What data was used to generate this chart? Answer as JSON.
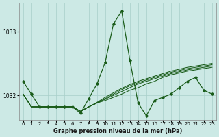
{
  "title": "Graphe pression niveau de la mer (hPa)",
  "bg_color": "#cce9e5",
  "grid_color": "#a8cfc9",
  "line_color": "#1a5c1a",
  "marker_color": "#1a5c1a",
  "xlim": [
    -0.5,
    23.5
  ],
  "ylim": [
    1031.62,
    1033.45
  ],
  "yticks": [
    1032,
    1033
  ],
  "xticks": [
    0,
    1,
    2,
    3,
    4,
    5,
    6,
    7,
    8,
    9,
    10,
    11,
    12,
    13,
    14,
    15,
    16,
    17,
    18,
    19,
    20,
    21,
    22,
    23
  ],
  "series_main": [
    1032.22,
    1032.02,
    1031.82,
    1031.82,
    1031.82,
    1031.82,
    1031.82,
    1031.72,
    1031.95,
    1032.18,
    1032.52,
    1033.12,
    1033.32,
    1032.55,
    1031.88,
    1031.68,
    1031.92,
    1031.97,
    1032.02,
    1032.12,
    1032.22,
    1032.28,
    1032.08,
    1032.02
  ],
  "series_trend": [
    [
      1032.02,
      1031.82,
      1031.82,
      1031.82,
      1031.82,
      1031.82,
      1031.82,
      1031.75,
      1031.82,
      1031.88,
      1031.92,
      1031.97,
      1032.02,
      1032.08,
      1032.12,
      1032.18,
      1032.22,
      1032.28,
      1032.32,
      1032.35,
      1032.38,
      1032.4,
      1032.42,
      1032.44
    ],
    [
      1032.02,
      1031.82,
      1031.82,
      1031.82,
      1031.82,
      1031.82,
      1031.82,
      1031.75,
      1031.82,
      1031.88,
      1031.94,
      1032.0,
      1032.06,
      1032.12,
      1032.18,
      1032.22,
      1032.26,
      1032.3,
      1032.34,
      1032.37,
      1032.4,
      1032.42,
      1032.44,
      1032.46
    ],
    [
      1032.02,
      1031.82,
      1031.82,
      1031.82,
      1031.82,
      1031.82,
      1031.82,
      1031.75,
      1031.82,
      1031.88,
      1031.95,
      1032.02,
      1032.09,
      1032.15,
      1032.2,
      1032.24,
      1032.28,
      1032.32,
      1032.36,
      1032.39,
      1032.42,
      1032.44,
      1032.46,
      1032.48
    ],
    [
      1032.02,
      1031.82,
      1031.82,
      1031.82,
      1031.82,
      1031.82,
      1031.82,
      1031.75,
      1031.82,
      1031.89,
      1031.97,
      1032.04,
      1032.11,
      1032.17,
      1032.22,
      1032.26,
      1032.3,
      1032.34,
      1032.38,
      1032.41,
      1032.44,
      1032.46,
      1032.48,
      1032.5
    ]
  ]
}
